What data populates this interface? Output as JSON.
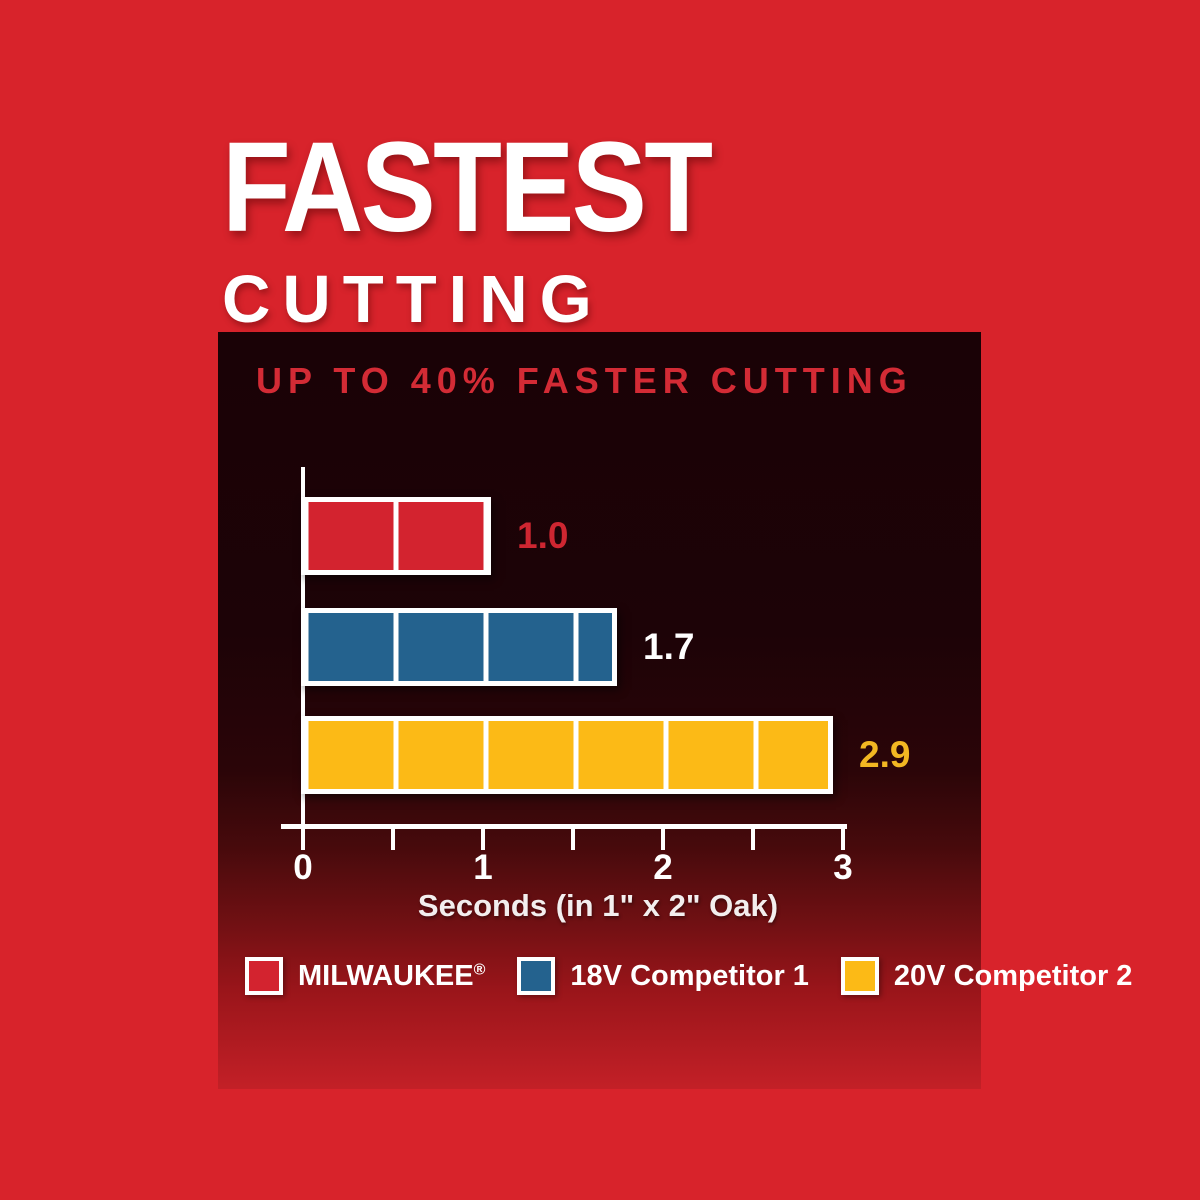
{
  "headline": {
    "line1": "FASTEST",
    "line2": "CUTTING"
  },
  "chart_data": {
    "type": "bar",
    "orientation": "horizontal",
    "title": "UP TO 40% FASTER CUTTING",
    "title_color": "#d32b35",
    "xlabel": "Seconds (in 1\" x 2\" Oak)",
    "xlim": [
      0,
      3
    ],
    "x_tick_labels": [
      "0",
      "1",
      "2",
      "3"
    ],
    "minor_tick_interval": 0.5,
    "bar_segment_interval": 0.5,
    "grid": false,
    "legend_position": "bottom",
    "categories": [
      "MILWAUKEE®",
      "18V Competitor 1",
      "20V Competitor 2"
    ],
    "series": [
      {
        "name": "MILWAUKEE®",
        "value": 1.0,
        "value_label": "1.0",
        "color": "#d3232f",
        "value_label_color": "#ce2631"
      },
      {
        "name": "18V Competitor 1",
        "value": 1.7,
        "value_label": "1.7",
        "color": "#24628e",
        "value_label_color": "#ffffff"
      },
      {
        "name": "20V Competitor 2",
        "value": 2.9,
        "value_label": "2.9",
        "color": "#fcba16",
        "value_label_color": "#f2b722"
      }
    ],
    "legend": [
      {
        "label": "MILWAUKEE®",
        "color": "#d3232f"
      },
      {
        "label": "18V Competitor 1",
        "color": "#24628e"
      },
      {
        "label": "20V Competitor 2",
        "color": "#fcba16"
      }
    ],
    "colors": {
      "background": "#d8232b",
      "panel_top": "#1a0206",
      "panel_bottom": "#c32027",
      "axis": "#ffffff",
      "bar_border": "#ffffff"
    }
  }
}
